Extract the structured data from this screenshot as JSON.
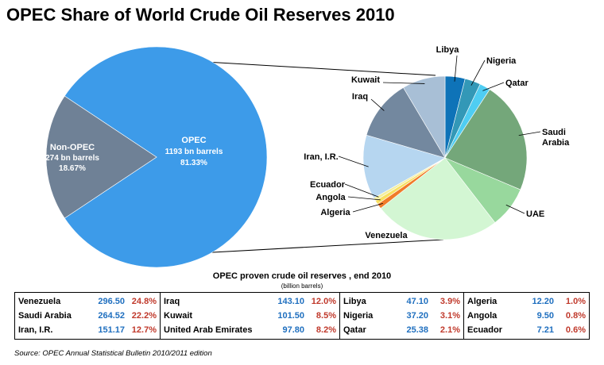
{
  "title": "OPEC Share of World Crude Oil Reserves 2010",
  "chart_data": [
    {
      "type": "pie",
      "slices": [
        {
          "label": "OPEC",
          "value_text": "1193 bn barrels",
          "pct_text": "81.33%",
          "value": 1193,
          "pct": 81.33,
          "color": "#3d9be9"
        },
        {
          "label": "Non-OPEC",
          "value_text": "274 bn barrels",
          "pct_text": "18.67%",
          "value": 274,
          "pct": 18.67,
          "color": "#6f8196"
        }
      ]
    },
    {
      "type": "pie",
      "slices": [
        {
          "label": "Libya",
          "value": 47.1,
          "color": "#0e73b8"
        },
        {
          "label": "Nigeria",
          "value": 37.2,
          "color": "#3398b7"
        },
        {
          "label": "Qatar",
          "value": 25.38,
          "color": "#4fcdf2"
        },
        {
          "label": "Saudi Arabia",
          "value": 264.52,
          "color": "#74a77a"
        },
        {
          "label": "UAE",
          "value": 97.8,
          "color": "#98d89d"
        },
        {
          "label": "Venezuela",
          "value": 296.5,
          "color": "#d3f6d3"
        },
        {
          "label": "Algeria",
          "value": 12.2,
          "color": "#f07b2a"
        },
        {
          "label": "Angola",
          "value": 9.5,
          "color": "#f8e060"
        },
        {
          "label": "Ecuador",
          "value": 7.21,
          "color": "#f3ef9e"
        },
        {
          "label": "Iran, I.R.",
          "value": 151.17,
          "color": "#b6d6f0"
        },
        {
          "label": "Iraq",
          "value": 143.1,
          "color": "#73889f"
        },
        {
          "label": "Kuwait",
          "value": 101.5,
          "color": "#a8bfd6"
        }
      ]
    }
  ],
  "table": {
    "title": "OPEC proven crude oil reserves , end 2010",
    "subtitle": "(billion barrels)",
    "columns": [
      [
        {
          "name": "Venezuela",
          "value": "296.50",
          "pct": "24.8%"
        },
        {
          "name": "Saudi Arabia",
          "value": "264.52",
          "pct": "22.2%"
        },
        {
          "name": "Iran, I.R.",
          "value": "151.17",
          "pct": "12.7%"
        }
      ],
      [
        {
          "name": "Iraq",
          "value": "143.10",
          "pct": "12.0%"
        },
        {
          "name": "Kuwait",
          "value": "101.50",
          "pct": "8.5%"
        },
        {
          "name": "United Arab Emirates",
          "value": "97.80",
          "pct": "8.2%"
        }
      ],
      [
        {
          "name": "Libya",
          "value": "47.10",
          "pct": "3.9%"
        },
        {
          "name": "Nigeria",
          "value": "37.20",
          "pct": "3.1%"
        },
        {
          "name": "Qatar",
          "value": "25.38",
          "pct": "2.1%"
        }
      ],
      [
        {
          "name": "Algeria",
          "value": "12.20",
          "pct": "1.0%"
        },
        {
          "name": "Angola",
          "value": "9.50",
          "pct": "0.8%"
        },
        {
          "name": "Ecuador",
          "value": "7.21",
          "pct": "0.6%"
        }
      ]
    ]
  },
  "source": "Source: OPEC Annual Statistical Bulletin 2010/2011 edition"
}
